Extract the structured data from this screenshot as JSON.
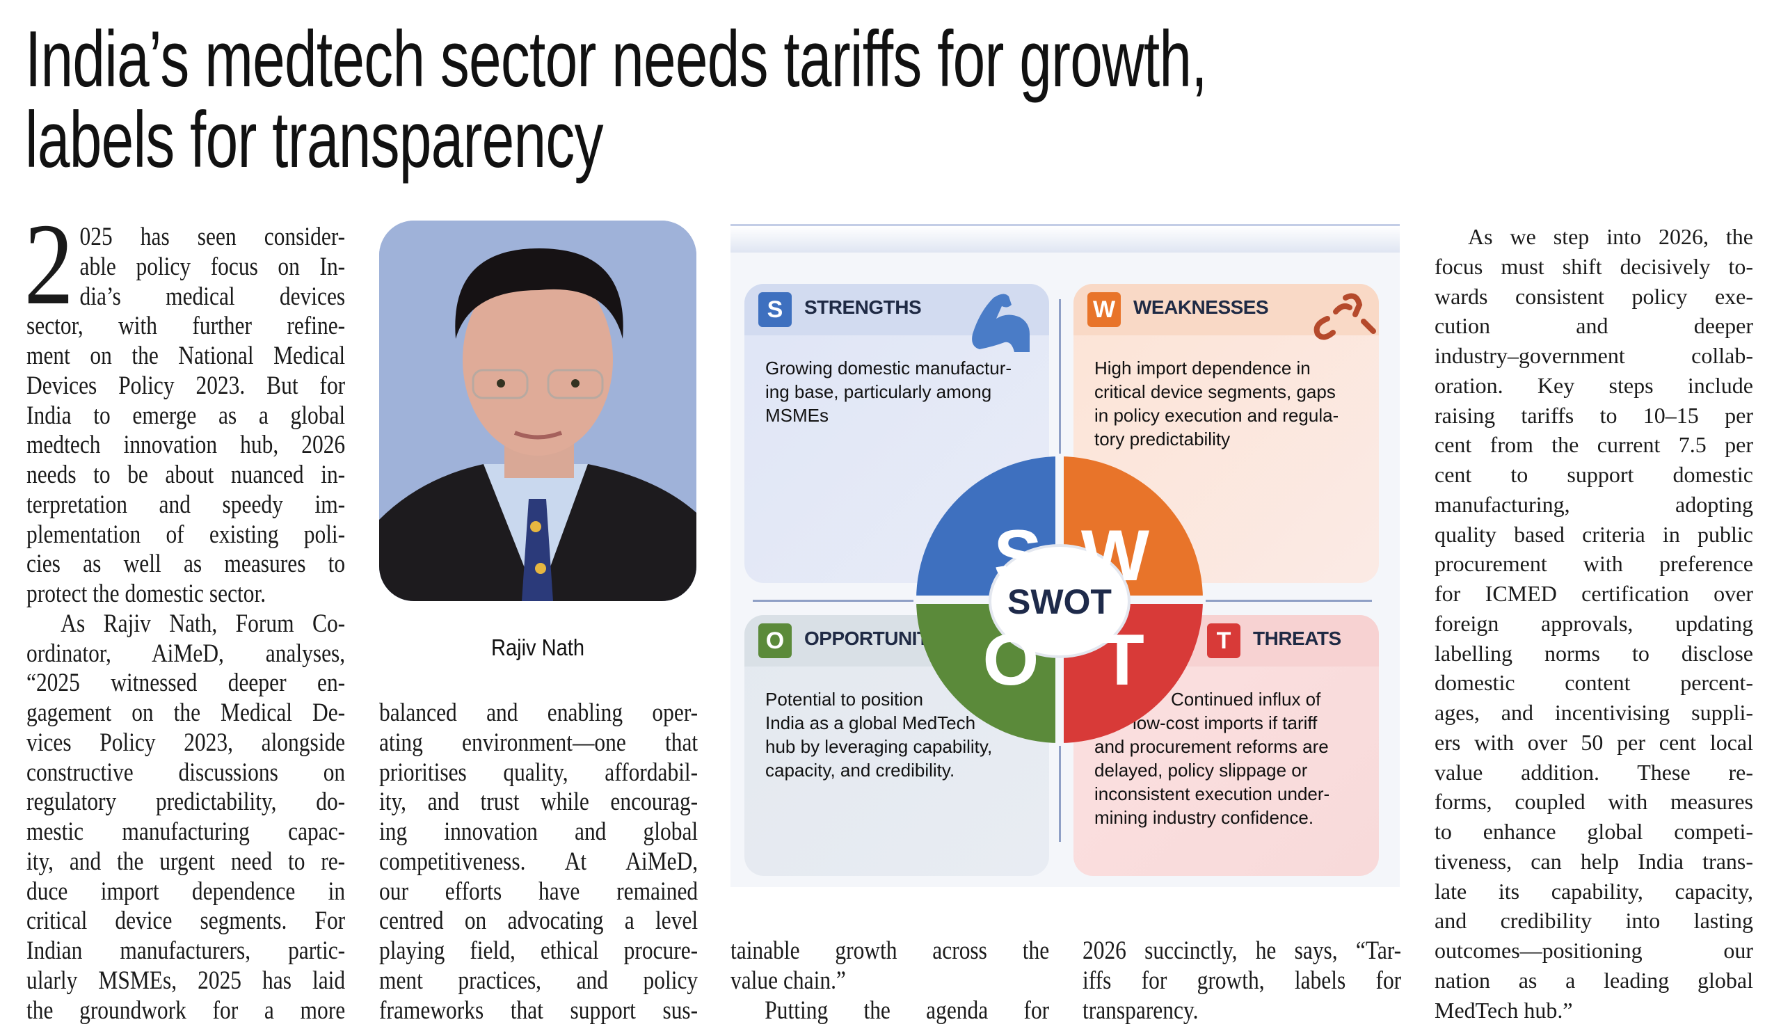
{
  "headline": {
    "line1": "India’s medtech sector needs tariffs for growth,",
    "line2": "labels for transparency"
  },
  "photo": {
    "caption": "Rajiv Nath"
  },
  "drop_cap": "2",
  "columns": {
    "col1": [
      {
        "t": "025 has seen consider-",
        "cap": true
      },
      {
        "t": "able policy focus on In-",
        "cap": true
      },
      {
        "t": "dia’s medical devices",
        "cap": true
      },
      {
        "t": "sector, with further refine-"
      },
      {
        "t": "ment on the National Medical"
      },
      {
        "t": "Devices Policy 2023. But for"
      },
      {
        "t": "India to emerge as a global"
      },
      {
        "t": "medtech innovation hub, 2026"
      },
      {
        "t": "needs to be about nuanced in-"
      },
      {
        "t": "terpretation and speedy im-"
      },
      {
        "t": "plementation of existing poli-"
      },
      {
        "t": "cies as well as measures to"
      },
      {
        "t": "protect the domestic sector.",
        "end": true
      },
      {
        "t": "As Rajiv Nath, Forum Co-",
        "ind": true
      },
      {
        "t": "ordinator, AiMeD, analyses,"
      },
      {
        "t": "“2025 witnessed deeper en-"
      },
      {
        "t": "gagement on the Medical De-"
      },
      {
        "t": "vices Policy 2023, alongside"
      },
      {
        "t": "constructive discussions on"
      },
      {
        "t": "regulatory predictability, do-"
      },
      {
        "t": "mestic manufacturing capac-"
      },
      {
        "t": "ity, and the urgent need to re-"
      },
      {
        "t": "duce import dependence in"
      },
      {
        "t": "critical device segments. For"
      },
      {
        "t": "Indian manufacturers, partic-"
      },
      {
        "t": "ularly MSMEs, 2025 has laid"
      },
      {
        "t": "the groundwork for a more"
      }
    ],
    "col2": [
      {
        "t": "balanced and enabling oper-"
      },
      {
        "t": "ating environment—one that"
      },
      {
        "t": "prioritises quality, affordabil-"
      },
      {
        "t": "ity, and trust while encourag-"
      },
      {
        "t": "ing innovation and global"
      },
      {
        "t": "competitiveness. At AiMeD,"
      },
      {
        "t": "our efforts have remained"
      },
      {
        "t": "centred on advocating a level"
      },
      {
        "t": "playing field, ethical procure-"
      },
      {
        "t": "ment practices, and policy"
      },
      {
        "t": "frameworks that support sus-"
      }
    ],
    "col3": [
      {
        "t": "tainable growth across the"
      },
      {
        "t": "value chain.”",
        "end": true
      },
      {
        "t": "Putting the agenda for",
        "ind": true
      }
    ],
    "col4": [
      {
        "t": "2026 succinctly, he says, “Tar-"
      },
      {
        "t": "iffs for growth, labels for"
      },
      {
        "t": "transparency.",
        "end": true
      }
    ],
    "col5": [
      {
        "t": "As we step into 2026, the",
        "ind": true
      },
      {
        "t": "focus must shift decisively to-"
      },
      {
        "t": "wards consistent policy exe-"
      },
      {
        "t": "cution and deeper"
      },
      {
        "t": "industry–government collab-"
      },
      {
        "t": "oration. Key steps include"
      },
      {
        "t": "raising tariffs to 10–15 per"
      },
      {
        "t": "cent from the current 7.5 per"
      },
      {
        "t": "cent to support domestic"
      },
      {
        "t": "manufacturing, adopting"
      },
      {
        "t": "quality based criteria in public"
      },
      {
        "t": "procurement with preference"
      },
      {
        "t": "for ICMED certification over"
      },
      {
        "t": "foreign approvals, updating"
      },
      {
        "t": "labelling norms to disclose"
      },
      {
        "t": "domestic content percent-"
      },
      {
        "t": "ages, and incentivising suppli-"
      },
      {
        "t": "ers with over 50 per cent local"
      },
      {
        "t": "value addition. These re-"
      },
      {
        "t": "forms, coupled with measures"
      },
      {
        "t": "to enhance global competi-"
      },
      {
        "t": "tiveness, can help India trans-"
      },
      {
        "t": "late its capability, capacity,"
      },
      {
        "t": "and credibility into lasting"
      },
      {
        "t": "outcomes—positioning our"
      },
      {
        "t": "nation as a leading global"
      },
      {
        "t": "MedTech hub.”",
        "end": true
      }
    ]
  },
  "swot": {
    "center_label": "SWOT",
    "strengths": {
      "letter": "S",
      "title": "STRENGTHS",
      "color": "#3e70bf",
      "icon": "flexed-bicep-icon",
      "lines": [
        "Growing domestic manufactur-",
        "ing base, particularly among",
        "MSMEs"
      ]
    },
    "weaknesses": {
      "letter": "W",
      "title": "WEAKNESSES",
      "color": "#e8742a",
      "icon": "broken-chain-icon",
      "lines": [
        "High import dependence in",
        "critical device segments, gaps",
        "in policy execution and regula-",
        "tory predictability"
      ]
    },
    "opportunities": {
      "letter": "O",
      "title": "OPPORTUNITIES",
      "color": "#5b8a3a",
      "lines": [
        "Potential to position",
        "India as a global MedTech",
        "hub by leveraging capability,",
        "capacity, and credibility."
      ]
    },
    "threats": {
      "letter": "T",
      "title": "THREATS",
      "color": "#d83a38",
      "lines": [
        "Continued influx of",
        "low-cost imports if tariff",
        "and procurement reforms are",
        "delayed, policy slippage or",
        "inconsistent execution under-",
        "mining industry confidence."
      ]
    }
  }
}
